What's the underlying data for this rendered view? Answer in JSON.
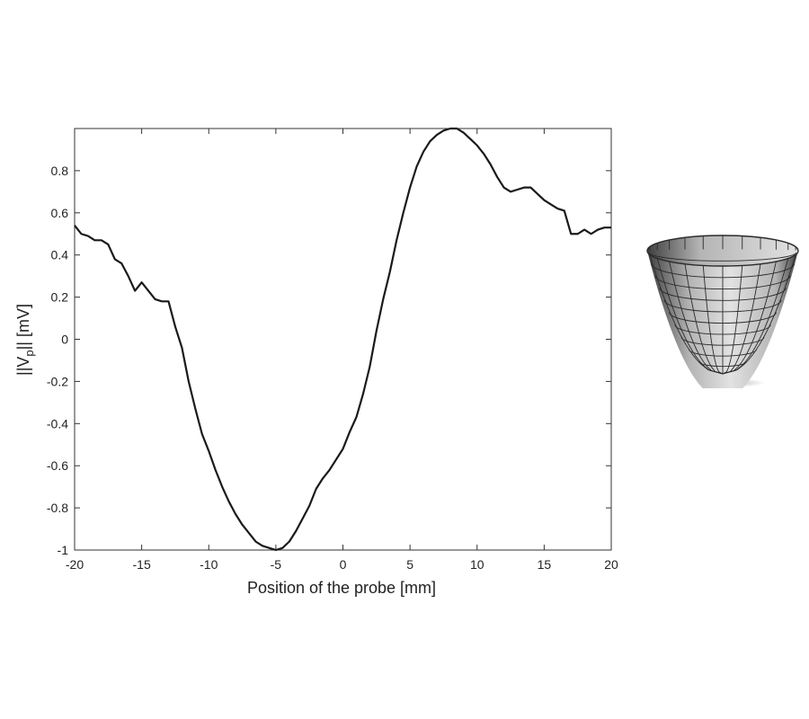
{
  "chart_data": {
    "type": "line",
    "title": "",
    "xlabel": "Position of the probe [mm]",
    "ylabel_parts": [
      "||V",
      "p",
      "|| [mV]"
    ],
    "xlim": [
      -20,
      20
    ],
    "ylim": [
      -1,
      1
    ],
    "xticks": [
      -20,
      -15,
      -10,
      -5,
      0,
      5,
      10,
      15,
      20
    ],
    "xtick_labels": [
      "-20",
      "-15",
      "-10",
      "-5",
      "0",
      "5",
      "10",
      "15",
      "20"
    ],
    "yticks": [
      -1,
      -0.8,
      -0.6,
      -0.4,
      -0.2,
      0,
      0.2,
      0.4,
      0.6,
      0.8
    ],
    "ytick_labels": [
      "-1",
      "-0.8",
      "-0.6",
      "-0.4",
      "-0.2",
      "0",
      "0.2",
      "0.4",
      "0.6",
      "0.8"
    ],
    "grid": false,
    "line_color": "#1a1a1a",
    "series": [
      {
        "x": [
          -20,
          -19.5,
          -19,
          -18.5,
          -18,
          -17.5,
          -17,
          -16.5,
          -16,
          -15.5,
          -15,
          -14.5,
          -14,
          -13.5,
          -13,
          -12.5,
          -12,
          -11.5,
          -11,
          -10.5,
          -10,
          -9.5,
          -9,
          -8.5,
          -8,
          -7.5,
          -7,
          -6.5,
          -6,
          -5.5,
          -5,
          -4.5,
          -4,
          -3.5,
          -3,
          -2.5,
          -2,
          -1.5,
          -1,
          -0.5,
          0,
          0.5,
          1,
          1.5,
          2,
          2.5,
          3,
          3.5,
          4,
          4.5,
          5,
          5.5,
          6,
          6.5,
          7,
          7.5,
          8,
          8.5,
          9,
          9.5,
          10,
          10.5,
          11,
          11.5,
          12,
          12.5,
          13,
          13.5,
          14,
          14.5,
          15,
          15.5,
          16,
          16.5,
          17,
          17.5,
          18,
          18.5,
          19,
          19.5,
          20
        ],
        "y": [
          0.54,
          0.5,
          0.49,
          0.47,
          0.47,
          0.45,
          0.38,
          0.36,
          0.3,
          0.23,
          0.27,
          0.23,
          0.19,
          0.18,
          0.18,
          0.06,
          -0.04,
          -0.2,
          -0.33,
          -0.45,
          -0.53,
          -0.62,
          -0.7,
          -0.77,
          -0.83,
          -0.88,
          -0.92,
          -0.96,
          -0.98,
          -0.99,
          -1.0,
          -0.99,
          -0.96,
          -0.91,
          -0.85,
          -0.79,
          -0.71,
          -0.66,
          -0.62,
          -0.57,
          -0.52,
          -0.44,
          -0.37,
          -0.26,
          -0.13,
          0.04,
          0.19,
          0.32,
          0.47,
          0.6,
          0.72,
          0.82,
          0.89,
          0.94,
          0.97,
          0.99,
          1.0,
          1.0,
          0.98,
          0.95,
          0.92,
          0.88,
          0.83,
          0.77,
          0.72,
          0.7,
          0.71,
          0.72,
          0.72,
          0.69,
          0.66,
          0.64,
          0.62,
          0.61,
          0.5,
          0.5,
          0.52,
          0.5,
          0.52,
          0.53,
          0.53
        ]
      }
    ]
  },
  "bowl_figure": {
    "fill_light": "#e2e2e2",
    "fill_mid": "#b4b4b4",
    "fill_dark": "#3f3f3f",
    "grid_color": "#2b2b2b"
  }
}
